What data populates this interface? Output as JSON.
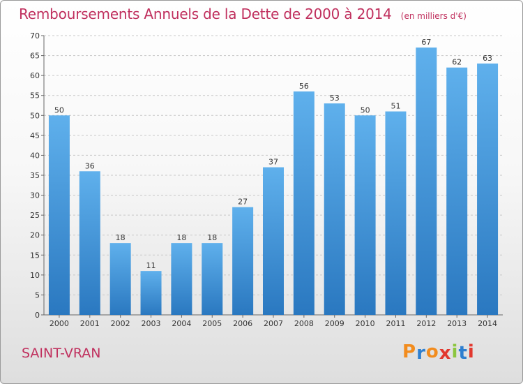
{
  "chart_data": {
    "type": "bar",
    "title": "Remboursements Annuels de la Dette de 2000 à 2014",
    "subtitle": "(en milliers d'€)",
    "categories": [
      "2000",
      "2001",
      "2002",
      "2003",
      "2004",
      "2005",
      "2006",
      "2007",
      "2008",
      "2009",
      "2010",
      "2011",
      "2012",
      "2013",
      "2014"
    ],
    "values": [
      50,
      36,
      18,
      11,
      18,
      18,
      27,
      37,
      56,
      53,
      50,
      51,
      67,
      62,
      63
    ],
    "ylim": [
      0,
      70
    ],
    "yticks": [
      0,
      5,
      10,
      15,
      20,
      25,
      30,
      35,
      40,
      45,
      50,
      55,
      60,
      65,
      70
    ],
    "grid": true,
    "bar_color": "#3a8fd6"
  },
  "footer": {
    "place": "SAINT-VRAN",
    "logo_letters": [
      "P",
      "r",
      "o",
      "x",
      "i",
      "t",
      "i"
    ],
    "logo_colors": [
      "#f28c1e",
      "#2e7fd0",
      "#f28c1e",
      "#e2382e",
      "#8cc63f",
      "#2e7fd0",
      "#e2382e"
    ]
  }
}
